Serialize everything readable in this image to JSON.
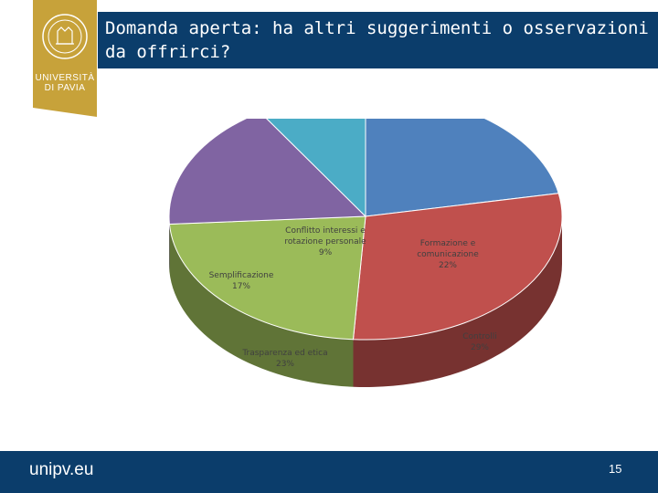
{
  "slide": {
    "title": "Domanda aperta: ha altri suggerimenti o osservazioni da offrirci?",
    "logo_text_line1": "UNIVERSITÀ",
    "logo_text_line2": "DI PAVIA",
    "footer_site": "unipv.eu",
    "page_number": "15"
  },
  "colors": {
    "brand": "#0b3d6b",
    "logo_gold": "#c7a23a"
  },
  "chart_data": {
    "type": "pie",
    "style": "3d",
    "slices": [
      {
        "label_lines": [
          "Formazione e",
          "comunicazione"
        ],
        "percent_label": "22%",
        "value": 22,
        "color": "#4f81bd"
      },
      {
        "label_lines": [
          "Controlli"
        ],
        "percent_label": "29%",
        "value": 29,
        "color": "#c0504d"
      },
      {
        "label_lines": [
          "Trasparenza ed etica"
        ],
        "percent_label": "23%",
        "value": 23,
        "color": "#9bbb59"
      },
      {
        "label_lines": [
          "Semplificazione"
        ],
        "percent_label": "17%",
        "value": 17,
        "color": "#8064a2"
      },
      {
        "label_lines": [
          "Conflitto interessi e",
          "rotazione personale"
        ],
        "percent_label": "9%",
        "value": 9,
        "color": "#4bacc6"
      }
    ]
  }
}
